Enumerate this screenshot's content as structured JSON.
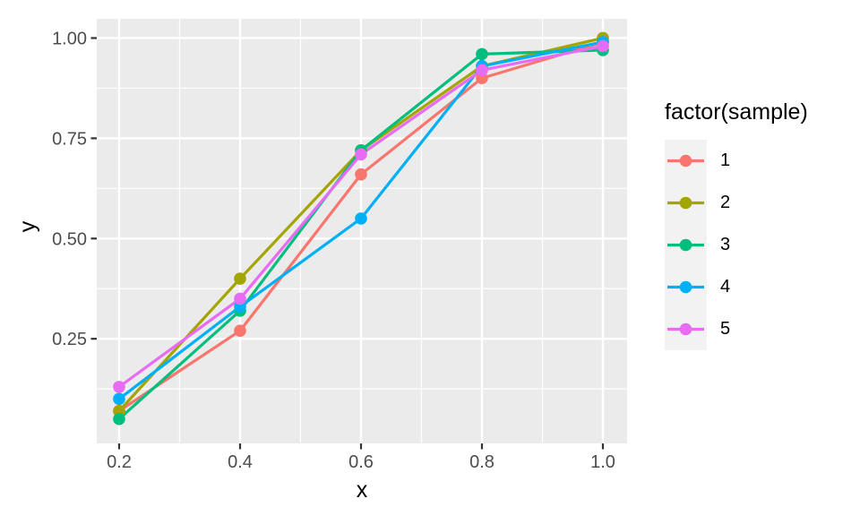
{
  "chart_data": {
    "type": "line",
    "title": "",
    "xlabel": "x",
    "ylabel": "y",
    "legend_title": "factor(sample)",
    "legend_position": "right",
    "grid": true,
    "x": [
      0.2,
      0.4,
      0.6,
      0.8,
      1.0
    ],
    "series": [
      {
        "name": "1",
        "color": "#F8766D",
        "values": [
          0.07,
          0.27,
          0.66,
          0.9,
          0.99
        ]
      },
      {
        "name": "2",
        "color": "#A3A500",
        "values": [
          0.07,
          0.4,
          0.72,
          0.93,
          1.0
        ]
      },
      {
        "name": "3",
        "color": "#00BF7D",
        "values": [
          0.05,
          0.32,
          0.72,
          0.96,
          0.97
        ]
      },
      {
        "name": "4",
        "color": "#00B0F6",
        "values": [
          0.1,
          0.33,
          0.55,
          0.93,
          0.99
        ]
      },
      {
        "name": "5",
        "color": "#E76BF3",
        "values": [
          0.13,
          0.35,
          0.71,
          0.92,
          0.98
        ]
      }
    ],
    "x_ticks": [
      0.2,
      0.4,
      0.6,
      0.8,
      1.0
    ],
    "x_tick_labels": [
      "0.2",
      "0.4",
      "0.6",
      "0.8",
      "1.0"
    ],
    "x_minor_breaks": [
      0.3,
      0.5,
      0.7,
      0.9
    ],
    "y_ticks": [
      0.25,
      0.5,
      0.75,
      1.0
    ],
    "y_tick_labels": [
      "0.25",
      "0.50",
      "0.75",
      "1.00"
    ],
    "y_minor_breaks": [
      0.125,
      0.375,
      0.625,
      0.875
    ],
    "xlim": [
      0.163,
      1.04
    ],
    "ylim": [
      -0.011,
      1.048
    ],
    "panel_bg": "#EBEBEB",
    "grid_color": "#FFFFFF",
    "legend_key_bg": "#F2F2F2",
    "tick_mark_color": "#333333",
    "tick_label_color": "#4D4D4D"
  }
}
